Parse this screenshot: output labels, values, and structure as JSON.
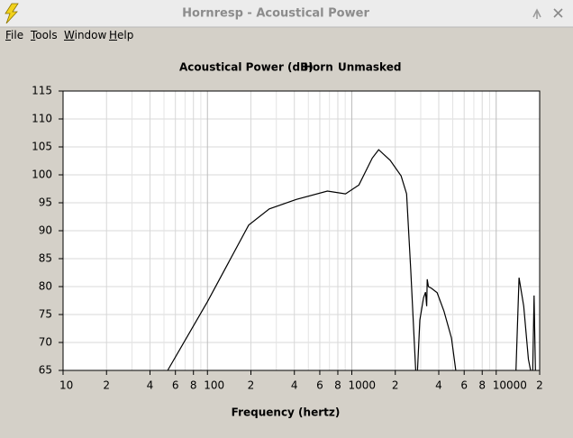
{
  "window": {
    "title": "Hornresp - Acoustical Power",
    "menu": [
      "File",
      "Tools",
      "Window",
      "Help"
    ]
  },
  "chart_data": {
    "type": "line",
    "title": [
      "Acoustical Power (dB)",
      "Horn",
      "Unmasked"
    ],
    "x_label": "Frequency (hertz)",
    "log_x": true,
    "grid": true,
    "xlim": [
      10,
      20000
    ],
    "ylim": [
      65,
      115
    ],
    "yticks": [
      65,
      70,
      75,
      80,
      85,
      90,
      95,
      100,
      105,
      110,
      115
    ],
    "xticks": [
      10,
      {
        "value": 20,
        "label": "2"
      },
      {
        "value": 40,
        "label": "4"
      },
      {
        "value": 60,
        "label": "6"
      },
      {
        "value": 80,
        "label": "8"
      },
      100,
      {
        "value": 200,
        "label": "2"
      },
      {
        "value": 400,
        "label": "4"
      },
      {
        "value": 600,
        "label": "6"
      },
      {
        "value": 800,
        "label": "8"
      },
      1000,
      {
        "value": 2000,
        "label": "2"
      },
      {
        "value": 4000,
        "label": "4"
      },
      {
        "value": 6000,
        "label": "6"
      },
      {
        "value": 8000,
        "label": "8"
      },
      10000,
      {
        "value": 20000,
        "label": "2"
      }
    ],
    "x_minor_ticks": [
      30,
      50,
      70,
      90,
      300,
      500,
      700,
      900,
      3000,
      5000,
      7000,
      9000
    ],
    "series": [
      {
        "color": "#000000",
        "x": [
          53,
          100,
          193,
          268,
          412,
          677,
          904,
          1120,
          1385,
          1534,
          1845,
          2195,
          2395,
          2560,
          2770,
          2800,
          2850,
          2960,
          3140,
          3240,
          3300,
          3330,
          3390,
          3560,
          3900,
          4350,
          4900,
          5250,
          9000,
          13700,
          14400,
          15500,
          16700,
          17300,
          17600,
          17900,
          18300,
          18700,
          19000,
          19200
        ],
        "values": [
          65,
          77.3,
          91,
          93.9,
          95.6,
          97.1,
          96.6,
          98.2,
          103,
          104.5,
          102.6,
          99.8,
          96.6,
          83,
          65,
          null,
          65,
          74,
          78,
          79,
          76.5,
          81.3,
          80,
          79.7,
          78.9,
          75.6,
          70.8,
          65,
          null,
          65,
          81.6,
          76.5,
          67,
          65,
          null,
          65,
          78.4,
          65,
          null,
          67
        ]
      }
    ]
  }
}
